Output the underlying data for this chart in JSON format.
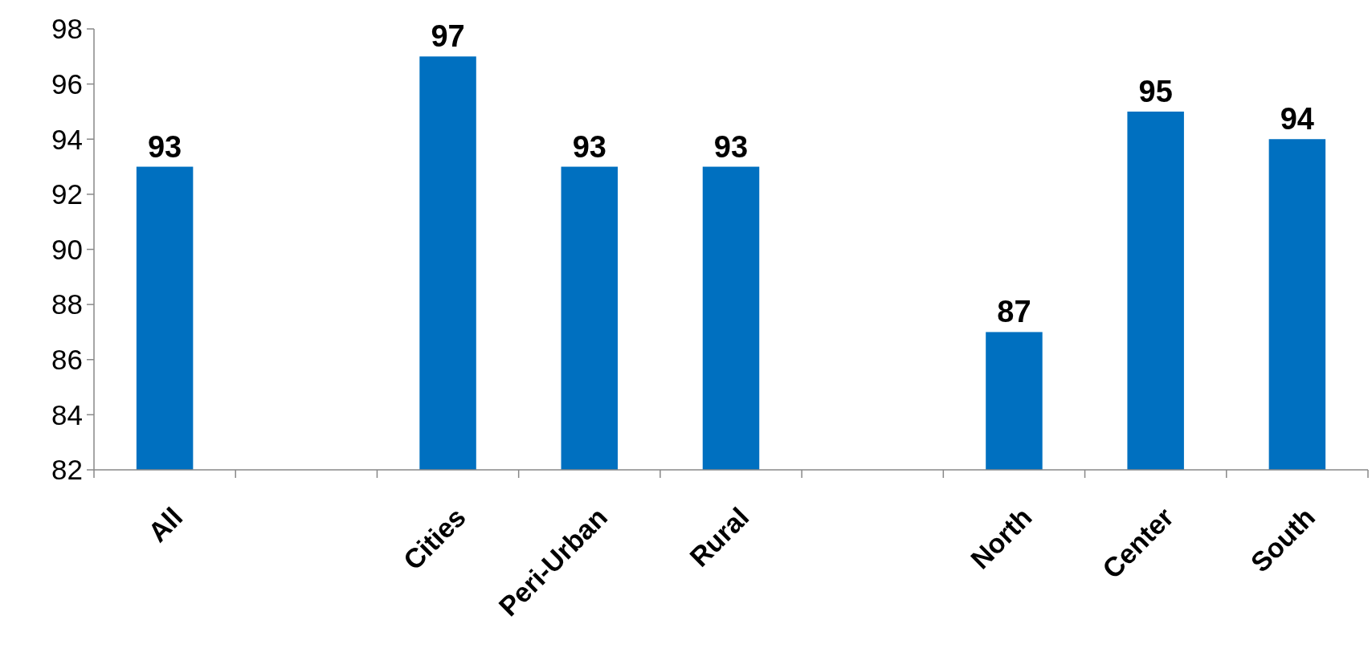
{
  "chart_data": {
    "type": "bar",
    "categories": [
      "All",
      null,
      "Cities",
      "Peri-Urban",
      "Rural",
      null,
      "North",
      "Center",
      "South"
    ],
    "values": [
      93,
      null,
      97,
      93,
      93,
      null,
      87,
      95,
      94
    ],
    "color": "#0070c0",
    "ylim": [
      82,
      98
    ],
    "yticks": [
      82,
      84,
      86,
      88,
      90,
      92,
      94,
      96,
      98
    ],
    "grid": false,
    "data_labels": true
  }
}
